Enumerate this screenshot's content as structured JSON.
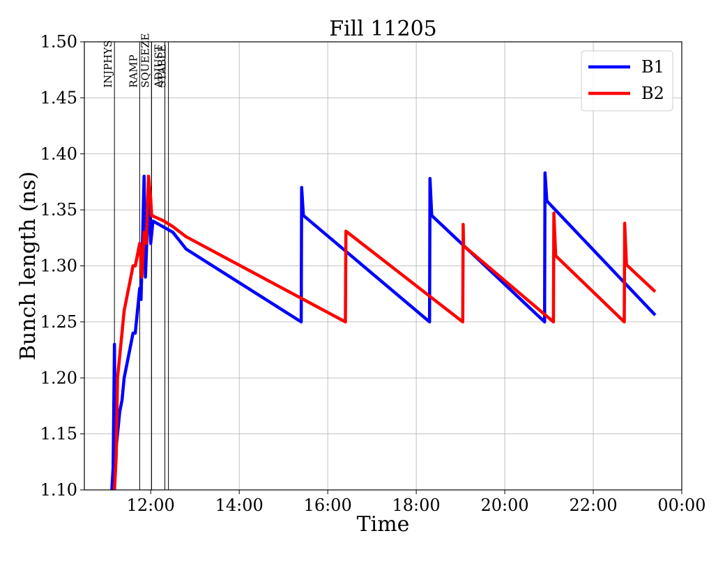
{
  "chart_data": {
    "type": "line",
    "title": "Fill 11205",
    "xlabel": "Time",
    "ylabel": "Bunch length (ns)",
    "xlim_hours": [
      10.5,
      24.0
    ],
    "ylim": [
      1.1,
      1.5
    ],
    "grid": true,
    "legend_position": "top-right",
    "x_ticks": [
      {
        "value": 12,
        "label": "12:00"
      },
      {
        "value": 14,
        "label": "14:00"
      },
      {
        "value": 16,
        "label": "16:00"
      },
      {
        "value": 18,
        "label": "18:00"
      },
      {
        "value": 20,
        "label": "20:00"
      },
      {
        "value": 22,
        "label": "22:00"
      },
      {
        "value": 24,
        "label": "00:00"
      }
    ],
    "y_ticks": [
      {
        "value": 1.1,
        "label": "1.10"
      },
      {
        "value": 1.15,
        "label": "1.15"
      },
      {
        "value": 1.2,
        "label": "1.20"
      },
      {
        "value": 1.25,
        "label": "1.25"
      },
      {
        "value": 1.3,
        "label": "1.30"
      },
      {
        "value": 1.35,
        "label": "1.35"
      },
      {
        "value": 1.4,
        "label": "1.40"
      },
      {
        "value": 1.45,
        "label": "1.45"
      },
      {
        "value": 1.5,
        "label": "1.50"
      }
    ],
    "phase_markers": [
      {
        "label": "INJPHYS",
        "time": 11.18
      },
      {
        "label": "RAMP",
        "time": 11.75
      },
      {
        "label": "SQUEEZE",
        "time": 12.02
      },
      {
        "label": "ADJUST",
        "time": 12.32
      },
      {
        "label": "STABLE",
        "time": 12.4
      }
    ],
    "series": [
      {
        "name": "B1",
        "color": "#0000ff",
        "points": [
          [
            11.12,
            1.1
          ],
          [
            11.15,
            1.12
          ],
          [
            11.18,
            1.23
          ],
          [
            11.2,
            1.13
          ],
          [
            11.25,
            1.15
          ],
          [
            11.3,
            1.17
          ],
          [
            11.35,
            1.18
          ],
          [
            11.4,
            1.2
          ],
          [
            11.45,
            1.21
          ],
          [
            11.5,
            1.22
          ],
          [
            11.55,
            1.23
          ],
          [
            11.6,
            1.24
          ],
          [
            11.65,
            1.24
          ],
          [
            11.7,
            1.26
          ],
          [
            11.75,
            1.28
          ],
          [
            11.78,
            1.27
          ],
          [
            11.82,
            1.33
          ],
          [
            11.85,
            1.38
          ],
          [
            11.88,
            1.29
          ],
          [
            11.92,
            1.33
          ],
          [
            11.95,
            1.37
          ],
          [
            12.0,
            1.32
          ],
          [
            12.05,
            1.34
          ],
          [
            12.5,
            1.33
          ],
          [
            12.8,
            1.315
          ],
          [
            15.4,
            1.25
          ],
          [
            15.41,
            1.37
          ],
          [
            15.45,
            1.345
          ],
          [
            18.3,
            1.25
          ],
          [
            18.31,
            1.378
          ],
          [
            18.35,
            1.345
          ],
          [
            20.9,
            1.25
          ],
          [
            20.91,
            1.383
          ],
          [
            20.95,
            1.358
          ],
          [
            23.4,
            1.256
          ]
        ]
      },
      {
        "name": "B2",
        "color": "#ff0000",
        "points": [
          [
            11.18,
            1.1
          ],
          [
            11.22,
            1.13
          ],
          [
            11.25,
            1.2
          ],
          [
            11.3,
            1.22
          ],
          [
            11.35,
            1.24
          ],
          [
            11.4,
            1.26
          ],
          [
            11.45,
            1.27
          ],
          [
            11.5,
            1.28
          ],
          [
            11.55,
            1.29
          ],
          [
            11.6,
            1.3
          ],
          [
            11.65,
            1.3
          ],
          [
            11.7,
            1.31
          ],
          [
            11.75,
            1.32
          ],
          [
            11.8,
            1.29
          ],
          [
            11.85,
            1.33
          ],
          [
            11.9,
            1.32
          ],
          [
            11.95,
            1.38
          ],
          [
            12.0,
            1.36
          ],
          [
            12.02,
            1.345
          ],
          [
            12.3,
            1.34
          ],
          [
            12.5,
            1.335
          ],
          [
            12.8,
            1.326
          ],
          [
            16.4,
            1.25
          ],
          [
            16.41,
            1.331
          ],
          [
            19.05,
            1.25
          ],
          [
            19.06,
            1.337
          ],
          [
            19.07,
            1.318
          ],
          [
            21.1,
            1.25
          ],
          [
            21.11,
            1.347
          ],
          [
            21.15,
            1.309
          ],
          [
            22.7,
            1.25
          ],
          [
            22.71,
            1.338
          ],
          [
            22.75,
            1.301
          ],
          [
            23.4,
            1.277
          ]
        ]
      }
    ]
  }
}
